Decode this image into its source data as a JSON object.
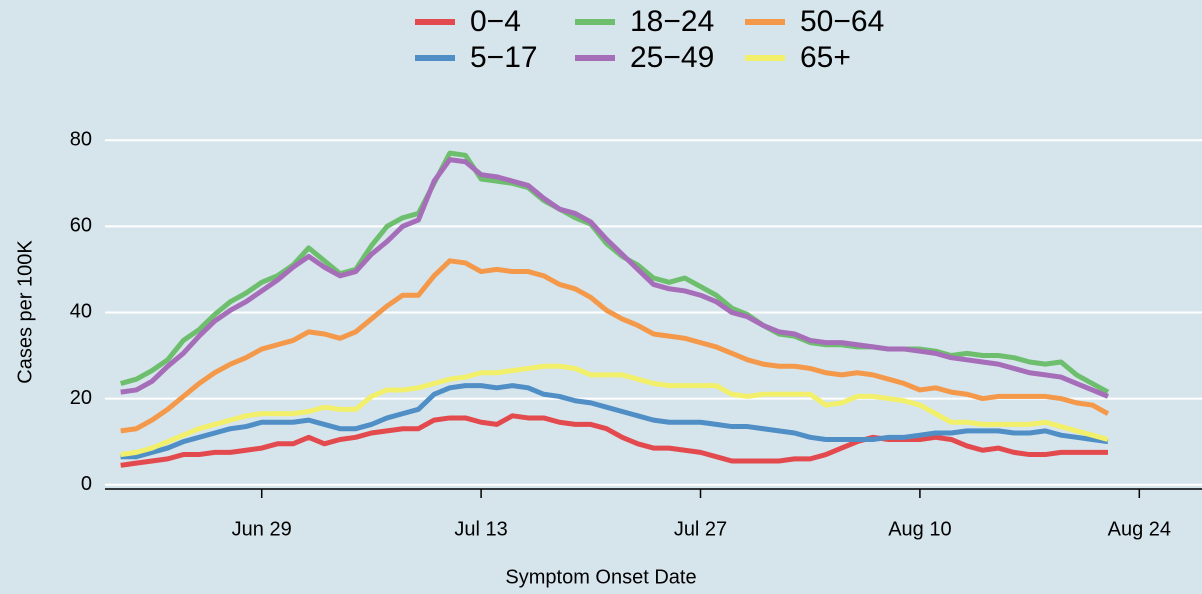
{
  "chart_data": {
    "type": "line",
    "x_label": "Symptom Onset Date",
    "y_label": "Cases per 100K",
    "x": [
      "Jun 20",
      "Jun 21",
      "Jun 22",
      "Jun 23",
      "Jun 24",
      "Jun 25",
      "Jun 26",
      "Jun 27",
      "Jun 28",
      "Jun 29",
      "Jun 30",
      "Jul 1",
      "Jul 2",
      "Jul 3",
      "Jul 4",
      "Jul 5",
      "Jul 6",
      "Jul 7",
      "Jul 8",
      "Jul 9",
      "Jul 10",
      "Jul 11",
      "Jul 12",
      "Jul 13",
      "Jul 14",
      "Jul 15",
      "Jul 16",
      "Jul 17",
      "Jul 18",
      "Jul 19",
      "Jul 20",
      "Jul 21",
      "Jul 22",
      "Jul 23",
      "Jul 24",
      "Jul 25",
      "Jul 26",
      "Jul 27",
      "Jul 28",
      "Jul 29",
      "Jul 30",
      "Jul 31",
      "Aug 1",
      "Aug 2",
      "Aug 3",
      "Aug 4",
      "Aug 5",
      "Aug 6",
      "Aug 7",
      "Aug 8",
      "Aug 9",
      "Aug 10",
      "Aug 11",
      "Aug 12",
      "Aug 13",
      "Aug 14",
      "Aug 15",
      "Aug 16",
      "Aug 17",
      "Aug 18",
      "Aug 19",
      "Aug 20",
      "Aug 21",
      "Aug 22"
    ],
    "xlim": [
      "Jun 19",
      "Aug 28"
    ],
    "xticks": [
      "Jun 29",
      "Jul 13",
      "Jul 27",
      "Aug 10",
      "Aug 24"
    ],
    "ylim": [
      -1,
      84
    ],
    "yticks": [
      0,
      20,
      40,
      60,
      80
    ],
    "grid": true,
    "legend_position": "top",
    "series": [
      {
        "name": "0−4",
        "color": "#e34a4e",
        "values": [
          4.5,
          5,
          5.5,
          6,
          7,
          7,
          7.5,
          7.5,
          8,
          8.5,
          9.5,
          9.5,
          11,
          9.5,
          10.5,
          11,
          12,
          12.5,
          13,
          13,
          15,
          15.5,
          15.5,
          14.5,
          14,
          16,
          15.5,
          15.5,
          14.5,
          14,
          14,
          13,
          11,
          9.5,
          8.5,
          8.5,
          8,
          7.5,
          6.5,
          5.5,
          5.5,
          5.5,
          5.5,
          6,
          6,
          7,
          8.5,
          10,
          11,
          10.5,
          10.5,
          10.5,
          11,
          10.5,
          9,
          8,
          8.5,
          7.5,
          7,
          7,
          7.5,
          7.5,
          7.5,
          7.5
        ]
      },
      {
        "name": "5−17",
        "color": "#4f8fc6",
        "values": [
          6.5,
          6.5,
          7.5,
          8.5,
          10,
          11,
          12,
          13,
          13.5,
          14.5,
          14.5,
          14.5,
          15,
          14,
          13,
          13,
          14,
          15.5,
          16.5,
          17.5,
          21,
          22.5,
          23,
          23,
          22.5,
          23,
          22.5,
          21,
          20.5,
          19.5,
          19,
          18,
          17,
          16,
          15,
          14.5,
          14.5,
          14.5,
          14,
          13.5,
          13.5,
          13,
          12.5,
          12,
          11,
          10.5,
          10.5,
          10.5,
          10.5,
          11,
          11,
          11.5,
          12,
          12,
          12.5,
          12.5,
          12.5,
          12,
          12,
          12.5,
          11.5,
          11,
          10.5,
          10
        ]
      },
      {
        "name": "18−24",
        "color": "#6dbf6d",
        "values": [
          23.5,
          24.5,
          26.5,
          29,
          33.5,
          36,
          39.5,
          42.5,
          44.5,
          47,
          48.5,
          51,
          55,
          52,
          49,
          50,
          55.5,
          60,
          62,
          63,
          70,
          77,
          76.5,
          71,
          70.5,
          70,
          69,
          66,
          64,
          62,
          60.5,
          56,
          53,
          51,
          48,
          47,
          48,
          46,
          44,
          41,
          39.5,
          37,
          35,
          34.5,
          33,
          32.5,
          32.5,
          32,
          32,
          31.5,
          31.5,
          31.5,
          31,
          30,
          30.5,
          30,
          30,
          29.5,
          28.5,
          28,
          28.5,
          25.5,
          23.5,
          21.5
        ]
      },
      {
        "name": "25−49",
        "color": "#a66db8",
        "values": [
          21.5,
          22,
          24,
          27.5,
          30.5,
          34.5,
          38,
          40.5,
          42.5,
          45,
          47.5,
          50.5,
          53,
          50.5,
          48.5,
          49.5,
          53.5,
          56.5,
          60,
          61.5,
          70.5,
          75.5,
          75,
          72,
          71.5,
          70.5,
          69.5,
          66.5,
          64,
          63,
          61,
          57,
          53.5,
          50,
          46.5,
          45.5,
          45,
          44,
          42.5,
          40,
          39,
          37,
          35.5,
          35,
          33.5,
          33,
          33,
          32.5,
          32,
          31.5,
          31.5,
          31,
          30.5,
          29.5,
          29,
          28.5,
          28,
          27,
          26,
          25.5,
          25,
          23.5,
          22,
          20.5
        ]
      },
      {
        "name": "50−64",
        "color": "#f4984a",
        "values": [
          12.5,
          13,
          15,
          17.5,
          20.5,
          23.5,
          26,
          28,
          29.5,
          31.5,
          32.5,
          33.5,
          35.5,
          35,
          34,
          35.5,
          38.5,
          41.5,
          44,
          44,
          48.5,
          52,
          51.5,
          49.5,
          50,
          49.5,
          49.5,
          48.5,
          46.5,
          45.5,
          43.5,
          40.5,
          38.5,
          37,
          35,
          34.5,
          34,
          33,
          32,
          30.5,
          29,
          28,
          27.5,
          27.5,
          27,
          26,
          25.5,
          26,
          25.5,
          24.5,
          23.5,
          22,
          22.5,
          21.5,
          21,
          20,
          20.5,
          20.5,
          20.5,
          20.5,
          20,
          19,
          18.5,
          16.5
        ]
      },
      {
        "name": "65+",
        "color": "#f2f06a",
        "values": [
          7,
          7.5,
          8.5,
          10,
          11.5,
          13,
          14,
          15,
          16,
          16.5,
          16.5,
          16.5,
          17,
          18,
          17.5,
          17.5,
          20.5,
          22,
          22,
          22.5,
          23.5,
          24.5,
          25,
          26,
          26,
          26.5,
          27,
          27.5,
          27.5,
          27,
          25.5,
          25.5,
          25.5,
          24.5,
          23.5,
          23,
          23,
          23,
          23,
          21,
          20.5,
          21,
          21,
          21,
          21,
          18.5,
          19,
          20.5,
          20.5,
          20,
          19.5,
          18.5,
          16.5,
          14.5,
          14.5,
          14,
          14,
          14,
          14,
          14.5,
          13.5,
          12.5,
          11.5,
          10.5
        ]
      }
    ]
  }
}
